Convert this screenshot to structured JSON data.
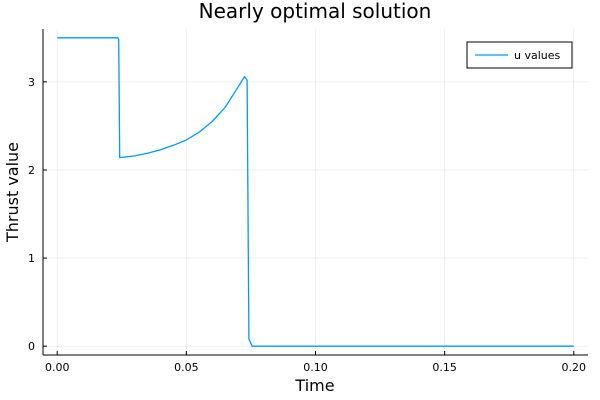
{
  "chart_data": {
    "type": "line",
    "title": "Nearly optimal solution",
    "xlabel": "Time",
    "ylabel": "Thrust value",
    "xlim": [
      -0.0055,
      0.2055
    ],
    "ylim": [
      -0.1,
      3.6
    ],
    "xticks": [
      0.0,
      0.05,
      0.1,
      0.15,
      0.2
    ],
    "xtick_labels": [
      "0.00",
      "0.05",
      "0.10",
      "0.15",
      "0.20"
    ],
    "yticks": [
      0,
      1,
      2,
      3
    ],
    "ytick_labels": [
      "0",
      "1",
      "2",
      "3"
    ],
    "grid": true,
    "legend_position": "top-right",
    "series": [
      {
        "name": "u values",
        "color": "#009af9",
        "x": [
          0.0,
          0.0235,
          0.0238,
          0.0242,
          0.03,
          0.035,
          0.04,
          0.045,
          0.05,
          0.055,
          0.06,
          0.065,
          0.07,
          0.0725,
          0.0735,
          0.0742,
          0.0755,
          0.2
        ],
        "y": [
          3.5,
          3.5,
          3.48,
          2.14,
          2.16,
          2.19,
          2.23,
          2.28,
          2.34,
          2.43,
          2.55,
          2.71,
          2.94,
          3.06,
          3.02,
          0.08,
          0.0,
          0.0
        ]
      }
    ]
  }
}
